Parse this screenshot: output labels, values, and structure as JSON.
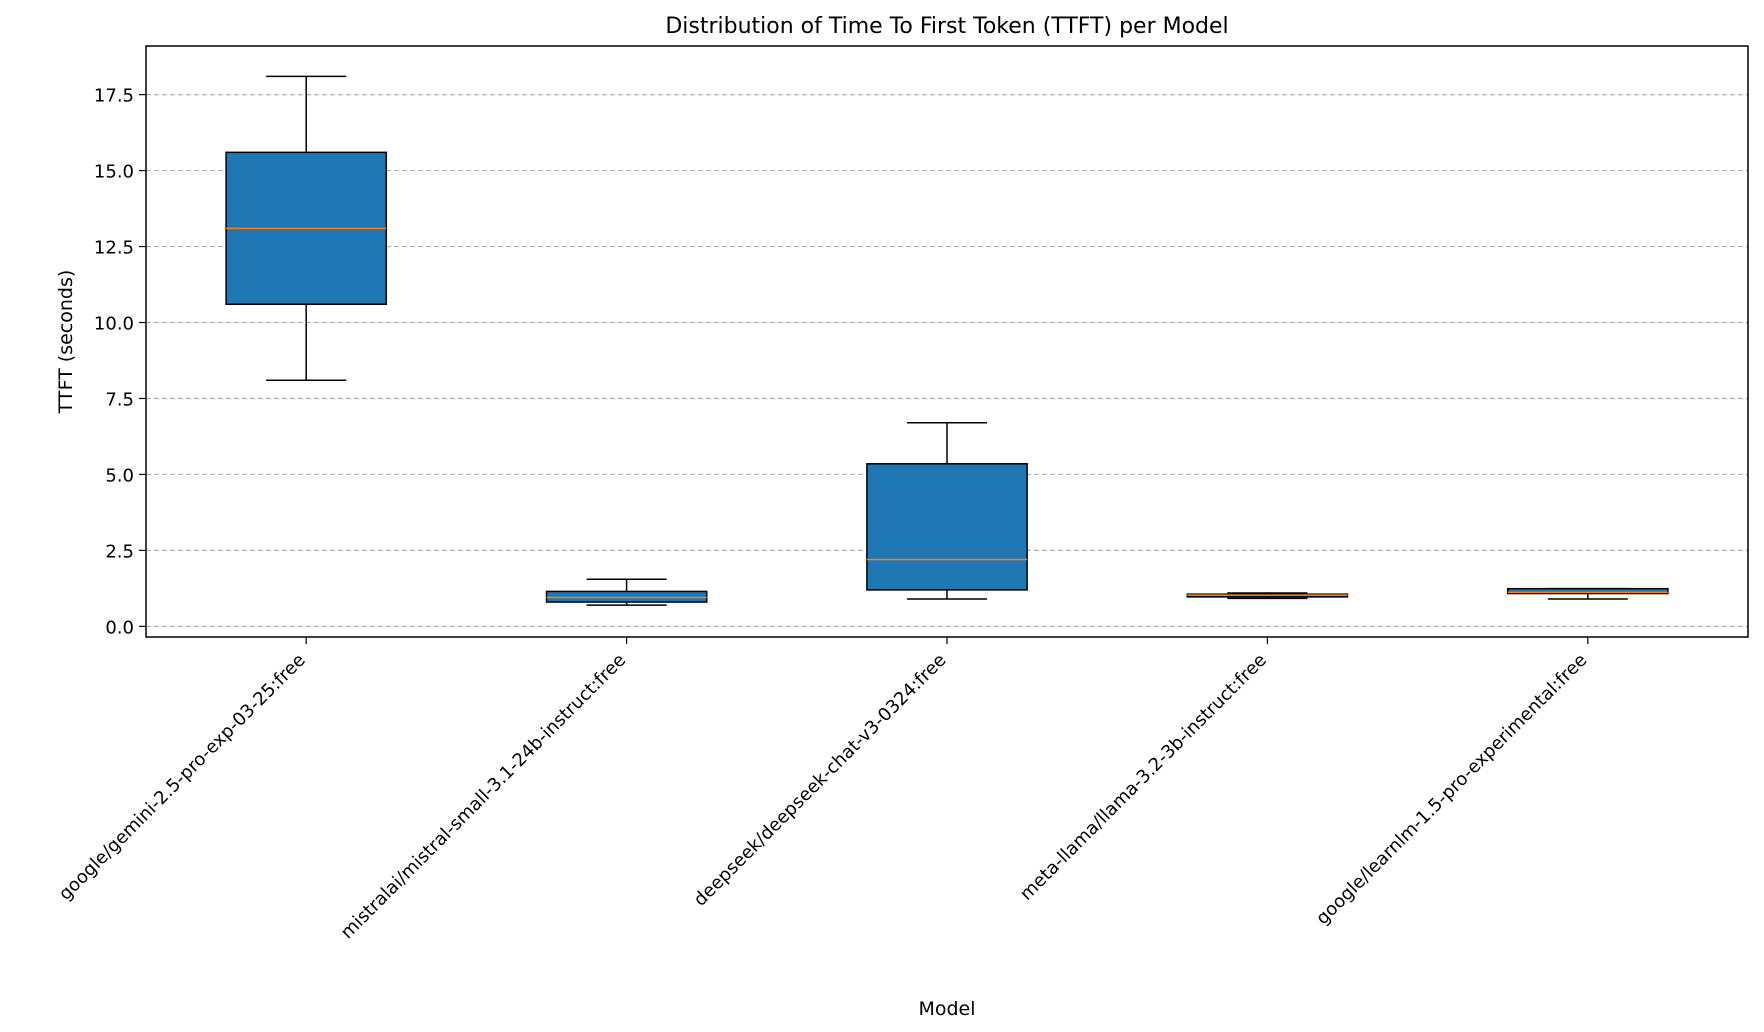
{
  "chart_data": {
    "type": "box",
    "title": "Distribution of Time To First Token (TTFT) per Model",
    "xlabel": "Model",
    "ylabel": "TTFT (seconds)",
    "ylim": [
      -0.35,
      19.1
    ],
    "yticks": [
      0.0,
      2.5,
      5.0,
      7.5,
      10.0,
      12.5,
      15.0,
      17.5
    ],
    "ytick_labels": [
      "0.0",
      "2.5",
      "5.0",
      "7.5",
      "10.0",
      "12.5",
      "15.0",
      "17.5"
    ],
    "grid": "y-dashed",
    "categories": [
      "google/gemini-2.5-pro-exp-03-25:free",
      "mistralai/mistral-small-3.1-24b-instruct:free",
      "deepseek/deepseek-chat-v3-0324:free",
      "meta-llama/llama-3.2-3b-instruct:free",
      "google/learnlm-1.5-pro-experimental:free"
    ],
    "boxes": [
      {
        "whislo": 8.1,
        "q1": 10.6,
        "med": 13.1,
        "q3": 15.6,
        "whishi": 18.1
      },
      {
        "whislo": 0.7,
        "q1": 0.8,
        "med": 0.95,
        "q3": 1.15,
        "whishi": 1.55
      },
      {
        "whislo": 0.9,
        "q1": 1.2,
        "med": 2.2,
        "q3": 5.35,
        "whishi": 6.7
      },
      {
        "whislo": 0.92,
        "q1": 0.97,
        "med": 1.03,
        "q3": 1.06,
        "whishi": 1.1
      },
      {
        "whislo": 0.9,
        "q1": 1.08,
        "med": 1.12,
        "q3": 1.24,
        "whishi": 1.24
      }
    ],
    "colors": {
      "box_fill": "#1f77b4",
      "median": "#ff7f0e",
      "grid": "#b0b0b0",
      "edge": "#000000"
    }
  }
}
